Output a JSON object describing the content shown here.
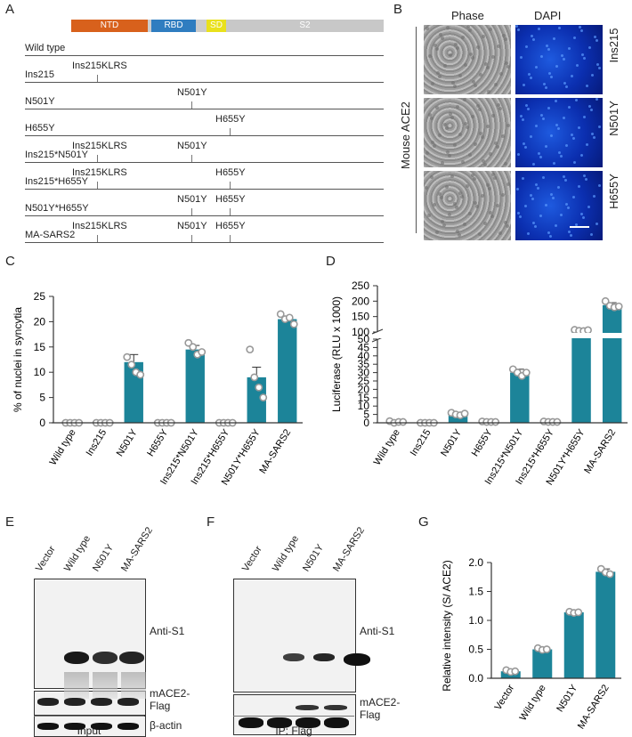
{
  "panels": {
    "A": "A",
    "B": "B",
    "C": "C",
    "D": "D",
    "E": "E",
    "F": "F",
    "G": "G"
  },
  "panelA": {
    "domains": [
      {
        "label": "NTD",
        "color": "#d8611c"
      },
      {
        "label": "RBD",
        "color": "#2f7dc0"
      },
      {
        "label": "SD",
        "color": "#e9e11c"
      },
      {
        "label": "S2",
        "color": "#c8c8c8"
      }
    ],
    "constructs": [
      {
        "name": "Wild type",
        "marks": []
      },
      {
        "name": "Ins215",
        "marks": [
          {
            "label": "Ins215KLRS",
            "site": "ins215"
          }
        ]
      },
      {
        "name": "N501Y",
        "marks": [
          {
            "label": "N501Y",
            "site": "n501"
          }
        ]
      },
      {
        "name": "H655Y",
        "marks": [
          {
            "label": "H655Y",
            "site": "h655"
          }
        ]
      },
      {
        "name": "Ins215*N501Y",
        "marks": [
          {
            "label": "Ins215KLRS",
            "site": "ins215"
          },
          {
            "label": "N501Y",
            "site": "n501"
          }
        ]
      },
      {
        "name": "Ins215*H655Y",
        "marks": [
          {
            "label": "Ins215KLRS",
            "site": "ins215"
          },
          {
            "label": "H655Y",
            "site": "h655"
          }
        ]
      },
      {
        "name": "N501Y*H655Y",
        "marks": [
          {
            "label": "N501Y",
            "site": "n501"
          },
          {
            "label": "H655Y",
            "site": "h655"
          }
        ]
      },
      {
        "name": "MA-SARS2",
        "marks": [
          {
            "label": "Ins215KLRS",
            "site": "ins215"
          },
          {
            "label": "N501Y",
            "site": "n501"
          },
          {
            "label": "H655Y",
            "site": "h655"
          }
        ]
      }
    ]
  },
  "panelB": {
    "col_phase": "Phase",
    "col_dapi": "DAPI",
    "side_label": "Mouse ACE2",
    "rows": [
      "Ins215",
      "N501Y",
      "H655Y"
    ]
  },
  "chart_data": [
    {
      "panel": "C",
      "type": "bar",
      "categories": [
        "Wild type",
        "Ins215",
        "N501Y",
        "H655Y",
        "Ins215*N501Y",
        "Ins215*H655Y",
        "N501Y*H655Y",
        "MA-SARS2"
      ],
      "values": [
        0,
        0,
        12,
        0,
        14.5,
        0,
        9,
        20.5
      ],
      "errors": [
        0,
        0,
        1.5,
        0,
        0.8,
        0,
        2,
        0.6
      ],
      "points": [
        [
          0,
          0,
          0,
          0
        ],
        [
          0,
          0,
          0,
          0
        ],
        [
          13,
          11.5,
          10,
          9.5
        ],
        [
          0,
          0,
          0,
          0
        ],
        [
          15.8,
          15,
          13.5,
          14
        ],
        [
          0,
          0,
          0,
          0
        ],
        [
          14.5,
          9,
          7,
          5
        ],
        [
          21.5,
          20.5,
          20.8,
          19.5
        ]
      ],
      "ylabel": "% of nuclei in syncytia",
      "ylim": [
        0,
        25
      ],
      "yticks": [
        0,
        5,
        10,
        15,
        20,
        25
      ],
      "color": "#1c8499"
    },
    {
      "panel": "D",
      "type": "bar",
      "categories": [
        "Wild type",
        "Ins215",
        "N501Y",
        "H655Y",
        "Ins215*N501Y",
        "Ins215*H655Y",
        "N501Y*H655Y",
        "MA-SARS2"
      ],
      "values": [
        0.5,
        0,
        5,
        0.5,
        30,
        0.5,
        105,
        187
      ],
      "errors": [
        0.5,
        0,
        1,
        0.5,
        2,
        0.5,
        3,
        8
      ],
      "points": [
        [
          1,
          0,
          0.5,
          0.5
        ],
        [
          0,
          0,
          0,
          0
        ],
        [
          6,
          5,
          4.5,
          5.5
        ],
        [
          0.8,
          0.5,
          0.5,
          0.5
        ],
        [
          32,
          30,
          28,
          30
        ],
        [
          0.8,
          0.5,
          0.5,
          0.5
        ],
        [
          107,
          104,
          103,
          106
        ],
        [
          200,
          185,
          180,
          183
        ]
      ],
      "ylabel": "Luciferase (RLU x 1000)",
      "yticks_lower": [
        0,
        5,
        10,
        15,
        20,
        25,
        30,
        35,
        40,
        45,
        50
      ],
      "yticks_upper": [
        100,
        150,
        200,
        250
      ],
      "ylim": [
        0,
        250
      ],
      "axis_break": [
        50,
        100
      ],
      "color": "#1c8499"
    },
    {
      "panel": "G",
      "type": "bar",
      "categories": [
        "Vector",
        "Wild type",
        "N501Y",
        "MA-SARS2"
      ],
      "values": [
        0.12,
        0.5,
        1.14,
        1.84
      ],
      "errors": [
        0.02,
        0.02,
        0.02,
        0.05
      ],
      "points": [
        [
          0.14,
          0.11,
          0.12
        ],
        [
          0.52,
          0.49,
          0.5
        ],
        [
          1.15,
          1.13,
          1.14
        ],
        [
          1.89,
          1.83,
          1.8
        ]
      ],
      "ylabel": "Relative intensity (S/ ACE2)",
      "ylim": [
        0,
        2.0
      ],
      "yticks": [
        "0.0",
        "0.5",
        "1.0",
        "1.5",
        "2.0"
      ],
      "color": "#1c8499"
    }
  ],
  "panelE": {
    "lanes": [
      "Vector",
      "Wild type",
      "N501Y",
      "MA-SARS2"
    ],
    "labels": [
      "Anti-S1",
      "mACE2-\nFlag",
      "β-actin"
    ],
    "footer": "Input"
  },
  "panelF": {
    "lanes": [
      "Vector",
      "Wild type",
      "N501Y",
      "MA-SARS2"
    ],
    "labels": [
      "Anti-S1",
      "mACE2-\nFlag"
    ],
    "footer": "IP: Flag"
  }
}
